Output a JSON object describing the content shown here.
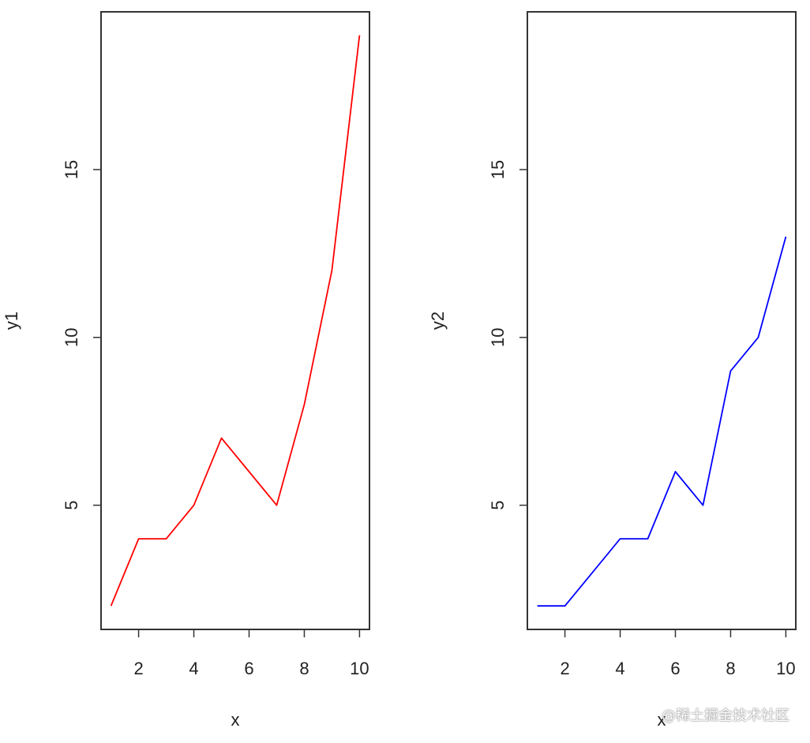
{
  "chart_data": [
    {
      "type": "line",
      "xlabel": "x",
      "ylabel": "y1",
      "x": [
        1,
        2,
        3,
        4,
        5,
        6,
        7,
        8,
        9,
        10
      ],
      "series": [
        {
          "values": [
            2,
            4,
            4,
            5,
            7,
            6,
            5,
            8,
            12,
            19
          ],
          "color": "#ff0000"
        }
      ],
      "xlim": [
        0.64,
        10.36
      ],
      "ylim": [
        1.3,
        19.7
      ],
      "xticks": [
        "2",
        "4",
        "6",
        "8",
        "10"
      ],
      "yticks": [
        "5",
        "10",
        "15"
      ],
      "grid": false
    },
    {
      "type": "line",
      "xlabel": "x",
      "ylabel": "y2",
      "x": [
        1,
        2,
        3,
        4,
        5,
        6,
        7,
        8,
        9,
        10
      ],
      "series": [
        {
          "values": [
            2,
            2,
            3,
            4,
            4,
            6,
            5,
            9,
            10,
            13
          ],
          "color": "#0000ff"
        }
      ],
      "xlim": [
        0.64,
        10.36
      ],
      "ylim": [
        1.3,
        19.7
      ],
      "xticks": [
        "2",
        "4",
        "6",
        "8",
        "10"
      ],
      "yticks": [
        "5",
        "10",
        "15"
      ],
      "grid": false
    }
  ],
  "watermark": "@稀土掘金技术社区"
}
